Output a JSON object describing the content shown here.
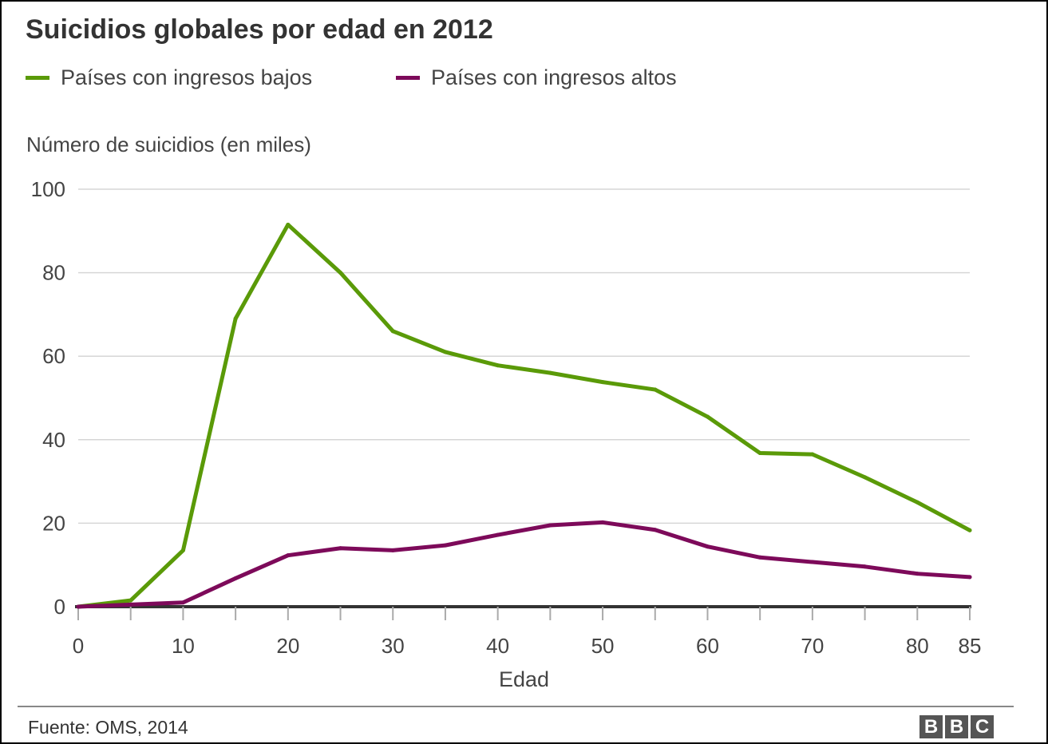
{
  "chart_data": {
    "type": "line",
    "title": "Suicidios globales por edad en 2012",
    "ylabel": "Número de suicidios (en miles)",
    "xlabel": "Edad",
    "x": [
      0,
      5,
      10,
      15,
      20,
      25,
      30,
      35,
      40,
      45,
      50,
      55,
      60,
      65,
      70,
      75,
      80,
      85
    ],
    "xticks": [
      0,
      5,
      10,
      15,
      20,
      25,
      30,
      35,
      40,
      45,
      50,
      55,
      60,
      65,
      70,
      75,
      80,
      85
    ],
    "xtick_labels": [
      {
        "value": 0,
        "label": "0"
      },
      {
        "value": 10,
        "label": "10"
      },
      {
        "value": 20,
        "label": "20"
      },
      {
        "value": 30,
        "label": "30"
      },
      {
        "value": 40,
        "label": "40"
      },
      {
        "value": 50,
        "label": "50"
      },
      {
        "value": 60,
        "label": "60"
      },
      {
        "value": 70,
        "label": "70"
      },
      {
        "value": 80,
        "label": "80"
      },
      {
        "value": 85,
        "label": "85"
      }
    ],
    "yticks": [
      {
        "value": 0,
        "label": "0"
      },
      {
        "value": 20,
        "label": "20"
      },
      {
        "value": 40,
        "label": "40"
      },
      {
        "value": 60,
        "label": "60"
      },
      {
        "value": 80,
        "label": "80"
      },
      {
        "value": 100,
        "label": "100"
      }
    ],
    "xlim": [
      0,
      85
    ],
    "ylim": [
      0,
      100
    ],
    "grid": "horizontal",
    "legend_position": "top-left",
    "series": [
      {
        "name": "Países con ingresos bajos",
        "color": "#5a9a08",
        "values": [
          0,
          1.5,
          13.5,
          69,
          91.5,
          80,
          66,
          61,
          57.8,
          56,
          53.8,
          52,
          45.5,
          36.8,
          36.5,
          31,
          25,
          18.3
        ]
      },
      {
        "name": "Países con ingresos altos",
        "color": "#7d0a5a",
        "values": [
          0,
          0.5,
          1,
          6.8,
          12.3,
          14,
          13.5,
          14.7,
          17.2,
          19.5,
          20.2,
          18.4,
          14.4,
          11.8,
          10.7,
          9.6,
          7.9,
          7.1
        ]
      }
    ]
  },
  "footer": {
    "source": "Fuente: OMS, 2014",
    "logo_letters": [
      "B",
      "B",
      "C"
    ]
  }
}
